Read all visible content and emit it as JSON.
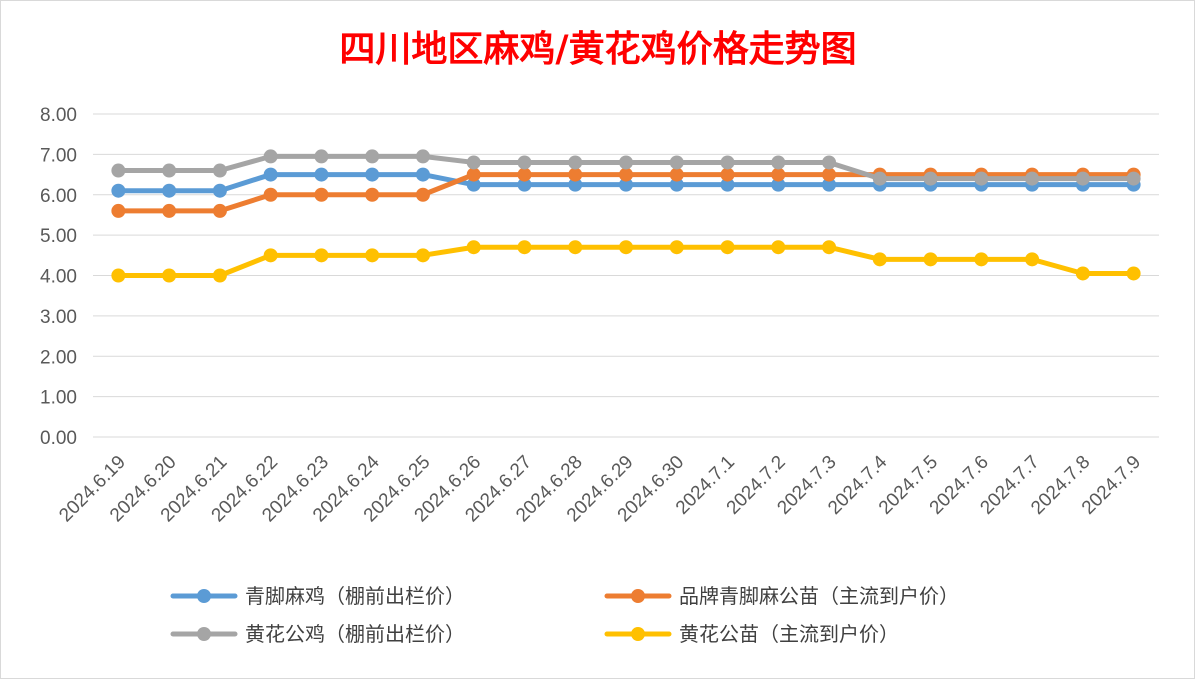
{
  "chart_data": {
    "type": "line",
    "title": "四川地区麻鸡/黄花鸡价格走势图",
    "ylim": [
      0,
      8
    ],
    "yticks": [
      "0.00",
      "1.00",
      "2.00",
      "3.00",
      "4.00",
      "5.00",
      "6.00",
      "7.00",
      "8.00"
    ],
    "grid": true,
    "legend_position": "bottom",
    "categories": [
      "2024.6.19",
      "2024.6.20",
      "2024.6.21",
      "2024.6.22",
      "2024.6.23",
      "2024.6.24",
      "2024.6.25",
      "2024.6.26",
      "2024.6.27",
      "2024.6.28",
      "2024.6.29",
      "2024.6.30",
      "2024.7.1",
      "2024.7.2",
      "2024.7.3",
      "2024.7.4",
      "2024.7.5",
      "2024.7.6",
      "2024.7.7",
      "2024.7.8",
      "2024.7.9"
    ],
    "series": [
      {
        "name": "青脚麻鸡（棚前出栏价）",
        "color": "#5b9bd5",
        "values": [
          6.1,
          6.1,
          6.1,
          6.5,
          6.5,
          6.5,
          6.5,
          6.25,
          6.25,
          6.25,
          6.25,
          6.25,
          6.25,
          6.25,
          6.25,
          6.25,
          6.25,
          6.25,
          6.25,
          6.25,
          6.25
        ]
      },
      {
        "name": "品牌青脚麻公苗（主流到户价）",
        "color": "#ed7d31",
        "values": [
          5.6,
          5.6,
          5.6,
          6.0,
          6.0,
          6.0,
          6.0,
          6.5,
          6.5,
          6.5,
          6.5,
          6.5,
          6.5,
          6.5,
          6.5,
          6.5,
          6.5,
          6.5,
          6.5,
          6.5,
          6.5
        ]
      },
      {
        "name": "黄花公鸡（棚前出栏价）",
        "color": "#a5a5a5",
        "values": [
          6.6,
          6.6,
          6.6,
          6.95,
          6.95,
          6.95,
          6.95,
          6.8,
          6.8,
          6.8,
          6.8,
          6.8,
          6.8,
          6.8,
          6.8,
          6.4,
          6.4,
          6.4,
          6.4,
          6.4,
          6.4
        ]
      },
      {
        "name": "黄花公苗（主流到户价）",
        "color": "#ffc000",
        "values": [
          4.0,
          4.0,
          4.0,
          4.5,
          4.5,
          4.5,
          4.5,
          4.7,
          4.7,
          4.7,
          4.7,
          4.7,
          4.7,
          4.7,
          4.7,
          4.4,
          4.4,
          4.4,
          4.4,
          4.05,
          4.05
        ]
      }
    ]
  }
}
